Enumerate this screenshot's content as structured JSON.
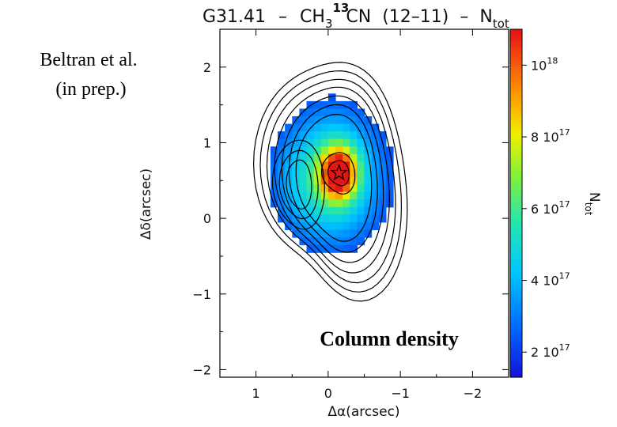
{
  "chart_data": {
    "type": "heatmap",
    "title": {
      "source": "G31.41",
      "sep1": "–",
      "molecule_a": "CH",
      "molecule_sub": "3",
      "molecule_sup": "13",
      "molecule_b": "CN",
      "transition": "(12–11)",
      "sep2": "–",
      "quantity": "N",
      "quantity_sub": "tot"
    },
    "xlabel": "Δα(arcsec)",
    "ylabel": "Δδ(arcsec)",
    "xlim": [
      1.5,
      -2.5
    ],
    "ylim": [
      -2.1,
      2.5
    ],
    "x_ticks": [
      {
        "value": 1,
        "label": "1"
      },
      {
        "value": 0,
        "label": "0"
      },
      {
        "value": -1,
        "label": "−1"
      },
      {
        "value": -2,
        "label": "−2"
      }
    ],
    "y_ticks": [
      {
        "value": 2,
        "label": "2"
      },
      {
        "value": 1,
        "label": "1"
      },
      {
        "value": 0,
        "label": "0"
      },
      {
        "value": -1,
        "label": "−1"
      },
      {
        "value": -2,
        "label": "−2"
      }
    ],
    "colorbar": {
      "label": "N",
      "label_sub": "tot",
      "range": [
        1.3e+17,
        1.1e+18
      ],
      "ticks": [
        {
          "value": 2e+17,
          "mant": "2 10",
          "exp": "17"
        },
        {
          "value": 4e+17,
          "mant": "4 10",
          "exp": "17"
        },
        {
          "value": 6e+17,
          "mant": "6 10",
          "exp": "17"
        },
        {
          "value": 8e+17,
          "mant": "8 10",
          "exp": "17"
        },
        {
          "value": 1e+18,
          "mant": "10",
          "exp": "18"
        }
      ]
    },
    "column_density_peak": {
      "x": -0.15,
      "y": 0.6,
      "value": 1.05e+18
    },
    "star_marker": {
      "x": -0.15,
      "y": 0.6
    }
  },
  "annotations": {
    "credit_line1": "Beltran et al.",
    "credit_line2": "(in prep.)",
    "overlay_label": "Column density"
  }
}
